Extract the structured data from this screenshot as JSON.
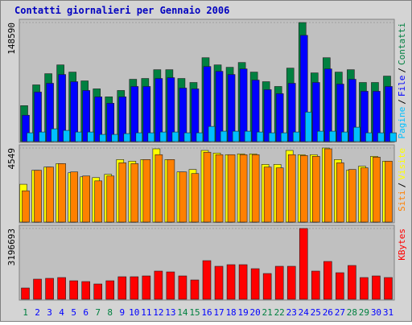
{
  "title": "Contatti giornalieri per Gennaio 2006",
  "chart_data": [
    {
      "type": "bar",
      "legend_separator": "/",
      "ylim": [
        0,
        148590
      ],
      "yticks": [
        148590
      ],
      "series": [
        {
          "name": "Pagine",
          "color": "#00c0ff",
          "values": [
            10970,
            11960,
            15950,
            13960,
            11960,
            11960,
            8970,
            8970,
            9970,
            10970,
            10970,
            11960,
            11960,
            10970,
            10970,
            18940,
            12960,
            12960,
            12960,
            11960,
            10970,
            10970,
            11960,
            36890,
            12960,
            12960,
            11960,
            17950,
            10970,
            10970,
            10970
          ]
        },
        {
          "name": "File",
          "color": "#0000ff",
          "values": [
            32900,
            61810,
            72780,
            83750,
            74780,
            63810,
            55830,
            47860,
            55830,
            68790,
            68790,
            78760,
            79760,
            66800,
            65800,
            93720,
            87740,
            83750,
            90730,
            76770,
            64810,
            59820,
            72780,
            132600,
            73780,
            90730,
            71780,
            77770,
            62810,
            62810,
            68790
          ]
        },
        {
          "name": "Contatti",
          "color": "#008040",
          "values": [
            44870,
            70790,
            84750,
            95710,
            86740,
            75770,
            65800,
            55830,
            63810,
            77770,
            78760,
            89730,
            89730,
            78760,
            73780,
            104690,
            95710,
            92720,
            98700,
            86740,
            74780,
            68790,
            91720,
            148590,
            85740,
            104690,
            86740,
            89730,
            73780,
            73780,
            81750
          ]
        }
      ]
    },
    {
      "type": "bar",
      "legend_separator": "/",
      "ylim": [
        0,
        4549
      ],
      "yticks": [
        4549
      ],
      "series": [
        {
          "name": "Siti",
          "color": "#ff8000",
          "values": [
            1920,
            3180,
            3380,
            3590,
            3080,
            2830,
            2530,
            2830,
            3640,
            3590,
            3840,
            4140,
            3840,
            3080,
            2980,
            4290,
            4140,
            4140,
            4140,
            4140,
            3380,
            3330,
            4140,
            4090,
            4040,
            4500,
            3640,
            3230,
            3330,
            3990,
            3740
          ]
        },
        {
          "name": "Visite",
          "color": "#ffff00",
          "values": [
            2320,
            3180,
            3380,
            3590,
            3030,
            2780,
            2730,
            2930,
            3840,
            3740,
            3840,
            4500,
            3840,
            3080,
            3230,
            4400,
            4240,
            4140,
            4190,
            4190,
            3540,
            3540,
            4400,
            4140,
            4140,
            4549,
            3840,
            3180,
            3430,
            4040,
            3740
          ]
        }
      ]
    },
    {
      "type": "bar",
      "ylim": [
        0,
        3196693
      ],
      "yticks": [
        3196693
      ],
      "categories": [
        "1",
        "2",
        "3",
        "4",
        "5",
        "6",
        "7",
        "8",
        "9",
        "10",
        "11",
        "12",
        "13",
        "14",
        "15",
        "16",
        "17",
        "18",
        "19",
        "20",
        "21",
        "22",
        "23",
        "24",
        "25",
        "26",
        "27",
        "28",
        "29",
        "30",
        "31"
      ],
      "label_colors": [
        "#008040",
        "#0000ff",
        "#0000ff",
        "#0000ff",
        "#0000ff",
        "#0000ff",
        "#008040",
        "#008040",
        "#0000ff",
        "#0000ff",
        "#0000ff",
        "#0000ff",
        "#0000ff",
        "#008040",
        "#008040",
        "#0000ff",
        "#0000ff",
        "#0000ff",
        "#0000ff",
        "#0000ff",
        "#008040",
        "#008040",
        "#0000ff",
        "#0000ff",
        "#0000ff",
        "#0000ff",
        "#0000ff",
        "#008040",
        "#008040",
        "#0000ff",
        "#0000ff"
      ],
      "series": [
        {
          "name": "KBytes",
          "color": "#ff0000",
          "values": [
            508560,
            908150,
            944480,
            980800,
            835500,
            799170,
            690190,
            835500,
            1017130,
            1017130,
            1053450,
            1271410,
            1235080,
            1053450,
            871820,
            1743650,
            1489370,
            1562020,
            1562020,
            1380390,
            1162430,
            1489370,
            1489370,
            3196693,
            1271410,
            1707320,
            1198760,
            1525690,
            980800,
            1053450,
            980800
          ]
        }
      ]
    }
  ]
}
